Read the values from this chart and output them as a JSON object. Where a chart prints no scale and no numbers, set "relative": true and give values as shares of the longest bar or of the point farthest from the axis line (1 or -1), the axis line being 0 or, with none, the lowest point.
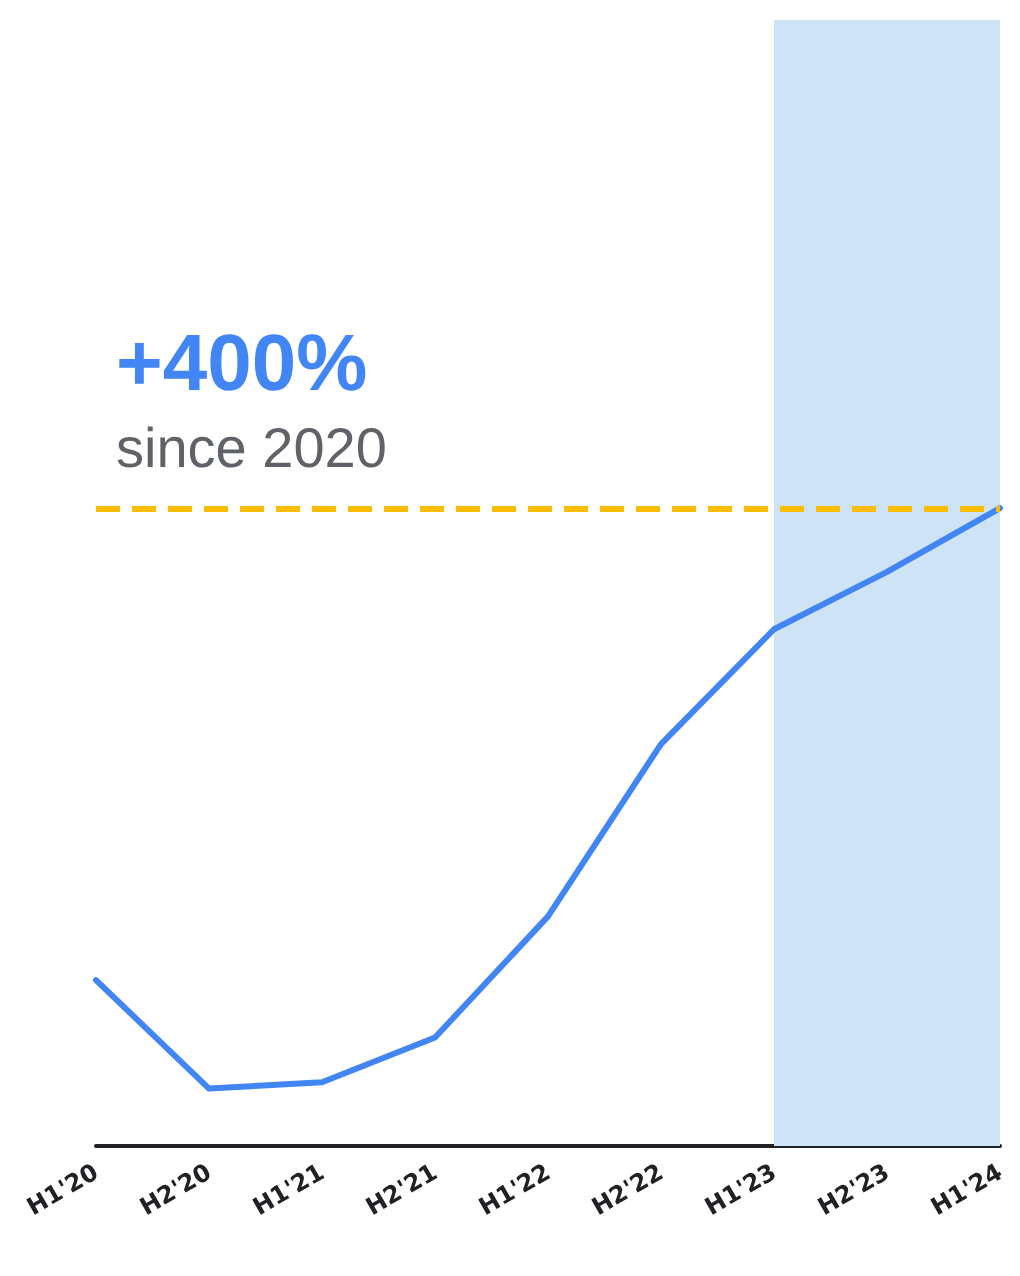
{
  "chart_data": {
    "type": "line",
    "relative": true,
    "categories": [
      "H1'20",
      "H2'20",
      "H1'21",
      "H2'21",
      "H1'22",
      "H2'22",
      "H1'23",
      "H2'23",
      "H1'24"
    ],
    "series": [
      {
        "color": "#4285f4",
        "values": [
          0.26,
          0.09,
          0.1,
          0.17,
          0.36,
          0.63,
          0.81,
          0.9,
          1.0
        ]
      }
    ],
    "marker": "none",
    "line_style": "solid",
    "ref_lines": [
      {
        "axis": "y",
        "value": 1,
        "label": null,
        "color": "#fbbc04",
        "line_style": "dashed"
      }
    ],
    "bands": [
      {
        "axis": "x",
        "from": "H1'23",
        "to": "H1'24",
        "label": null,
        "color": "#cfe3f6"
      }
    ],
    "annotations": [
      "+400%",
      "since 2020"
    ]
  }
}
